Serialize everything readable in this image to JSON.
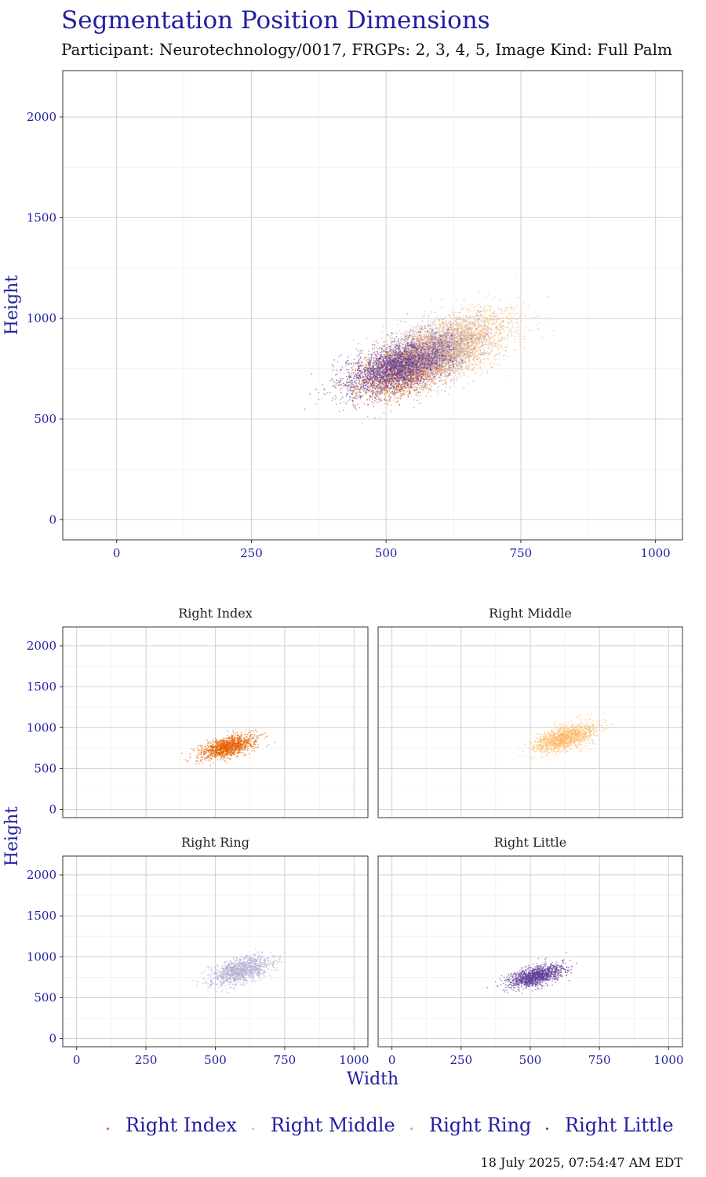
{
  "title": "Segmentation Position Dimensions",
  "subtitle": "Participant: Neurotechnology/0017, FRGPs: 2, 3, 4, 5, Image Kind: Full Palm",
  "timestamp": "18 July 2025, 07:54:47 AM EDT",
  "legend": [
    {
      "label": "Right Index",
      "color": "#e66101"
    },
    {
      "label": "Right Middle",
      "color": "#fdb863"
    },
    {
      "label": "Right Ring",
      "color": "#b2abd2"
    },
    {
      "label": "Right Little",
      "color": "#5e3c99"
    }
  ],
  "chart_data": [
    {
      "type": "scatter",
      "title": "",
      "xlabel": "",
      "ylabel": "Height",
      "xlim": [
        -100,
        1050
      ],
      "ylim": [
        -100,
        2230
      ],
      "x_ticks": [
        0,
        250,
        500,
        750,
        1000
      ],
      "y_ticks": [
        0,
        500,
        1000,
        1500,
        2000
      ],
      "grid": true,
      "series": [
        {
          "name": "Right Index",
          "color": "#e66101",
          "center": [
            545,
            760
          ],
          "spread": [
            50,
            75
          ],
          "corr": 0.55
        },
        {
          "name": "Right Middle",
          "color": "#fdb863",
          "center": [
            625,
            870
          ],
          "spread": [
            55,
            85
          ],
          "corr": 0.55
        },
        {
          "name": "Right Ring",
          "color": "#b2abd2",
          "center": [
            590,
            830
          ],
          "spread": [
            55,
            85
          ],
          "corr": 0.5
        },
        {
          "name": "Right Little",
          "color": "#5e3c99",
          "center": [
            520,
            760
          ],
          "spread": [
            50,
            70
          ],
          "corr": 0.55
        }
      ]
    },
    {
      "type": "scatter",
      "facet": true,
      "xlabel": "Width",
      "ylabel": "Height",
      "xlim": [
        -50,
        1050
      ],
      "ylim": [
        -100,
        2230
      ],
      "x_ticks": [
        0,
        250,
        500,
        750,
        1000
      ],
      "y_ticks": [
        0,
        500,
        1000,
        1500,
        2000
      ],
      "grid": true,
      "panels": [
        {
          "name": "Right Index",
          "color": "#e66101",
          "center": [
            545,
            760
          ],
          "spread": [
            50,
            75
          ],
          "corr": 0.55
        },
        {
          "name": "Right Middle",
          "color": "#fdb863",
          "center": [
            625,
            870
          ],
          "spread": [
            55,
            85
          ],
          "corr": 0.55
        },
        {
          "name": "Right Ring",
          "color": "#b2abd2",
          "center": [
            590,
            830
          ],
          "spread": [
            55,
            85
          ],
          "corr": 0.5
        },
        {
          "name": "Right Little",
          "color": "#5e3c99",
          "center": [
            520,
            760
          ],
          "spread": [
            50,
            70
          ],
          "corr": 0.55
        }
      ]
    }
  ]
}
